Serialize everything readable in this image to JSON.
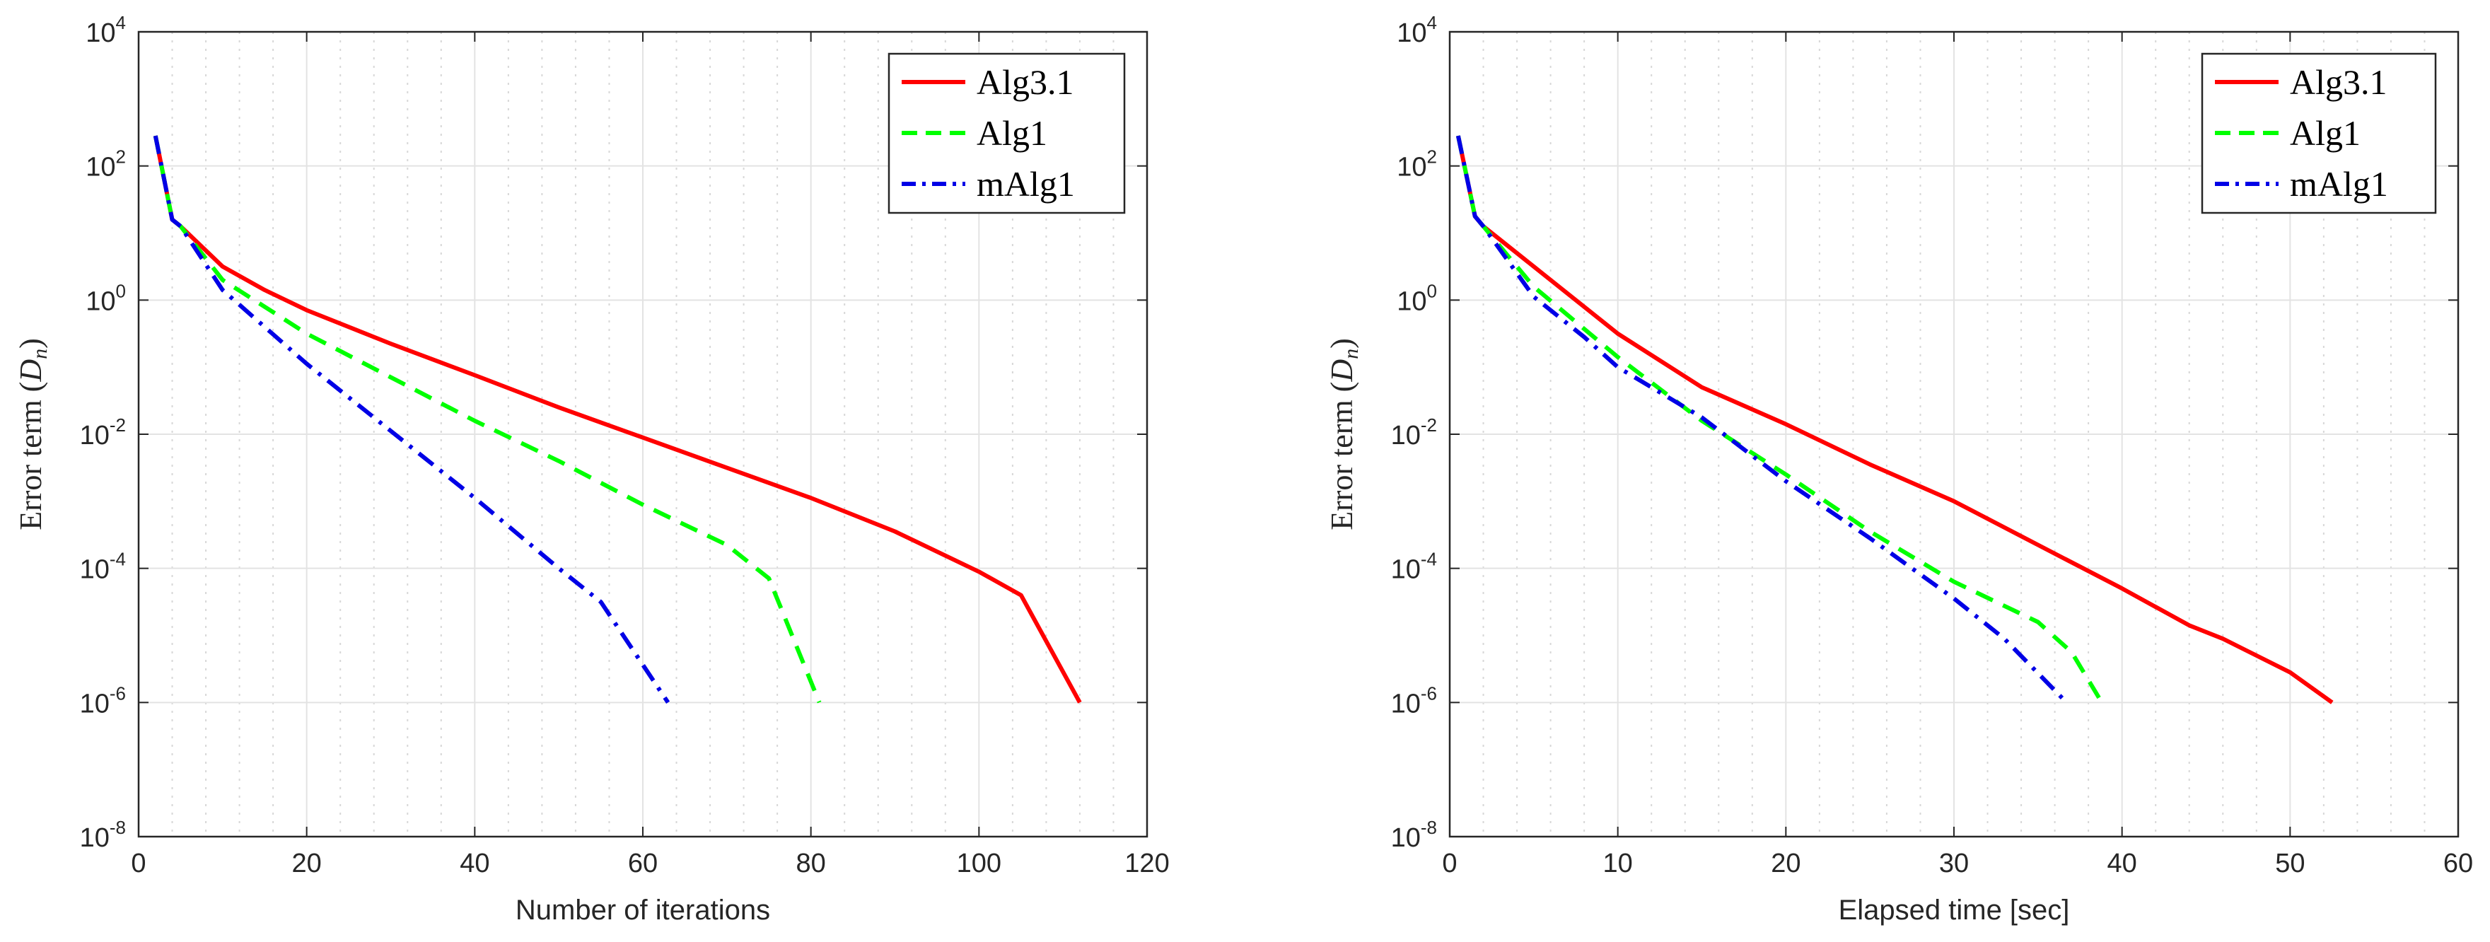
{
  "chart_data": [
    {
      "type": "line",
      "title": "",
      "xlabel": "Number of iterations",
      "ylabel": "Error term",
      "ylabel_symbol": "D",
      "ylabel_subscript": "n",
      "yscale": "log",
      "xlim": [
        0,
        120
      ],
      "ylim_exponent": [
        -8,
        4
      ],
      "x_ticks": [
        "0",
        "20",
        "40",
        "60",
        "80",
        "100",
        "120"
      ],
      "y_tick_base": "10",
      "y_tick_exponents": [
        "-8",
        "-6",
        "-4",
        "-2",
        "0",
        "2",
        "4"
      ],
      "grid": true,
      "legend_position": "top-right",
      "series": [
        {
          "name": "Alg3.1",
          "color": "#ff0000",
          "dash": "solid",
          "points": [
            [
              2,
              2.45
            ],
            [
              4,
              1.2
            ],
            [
              5,
              1.1
            ],
            [
              10,
              0.5
            ],
            [
              15,
              0.15
            ],
            [
              20,
              -0.15
            ],
            [
              30,
              -0.65
            ],
            [
              40,
              -1.12
            ],
            [
              50,
              -1.6
            ],
            [
              60,
              -2.05
            ],
            [
              70,
              -2.5
            ],
            [
              80,
              -2.95
            ],
            [
              90,
              -3.45
            ],
            [
              100,
              -4.05
            ],
            [
              105,
              -4.4
            ],
            [
              112,
              -6
            ]
          ]
        },
        {
          "name": "Alg1",
          "color": "#00ff00",
          "dash": "dashed",
          "points": [
            [
              2,
              2.45
            ],
            [
              4,
              1.2
            ],
            [
              5,
              1.1
            ],
            [
              10,
              0.3
            ],
            [
              15,
              -0.1
            ],
            [
              20,
              -0.5
            ],
            [
              30,
              -1.15
            ],
            [
              40,
              -1.8
            ],
            [
              50,
              -2.4
            ],
            [
              60,
              -3.05
            ],
            [
              70,
              -3.65
            ],
            [
              75,
              -4.15
            ],
            [
              81,
              -6
            ]
          ]
        },
        {
          "name": "mAlg1",
          "color": "#0000e6",
          "dash": "dashdot",
          "points": [
            [
              2,
              2.45
            ],
            [
              4,
              1.2
            ],
            [
              5,
              1.1
            ],
            [
              10,
              0.15
            ],
            [
              15,
              -0.4
            ],
            [
              20,
              -0.95
            ],
            [
              30,
              -1.95
            ],
            [
              40,
              -2.95
            ],
            [
              50,
              -4.0
            ],
            [
              55,
              -4.5
            ],
            [
              63,
              -6
            ]
          ]
        }
      ]
    },
    {
      "type": "line",
      "title": "",
      "xlabel": "Elapsed time [sec]",
      "ylabel": "Error term",
      "ylabel_symbol": "D",
      "ylabel_subscript": "n",
      "yscale": "log",
      "xlim": [
        0,
        60
      ],
      "ylim_exponent": [
        -8,
        4
      ],
      "x_ticks": [
        "0",
        "10",
        "20",
        "30",
        "40",
        "50",
        "60"
      ],
      "y_tick_base": "10",
      "y_tick_exponents": [
        "-8",
        "-6",
        "-4",
        "-2",
        "0",
        "2",
        "4"
      ],
      "grid": true,
      "legend_position": "top-right",
      "series": [
        {
          "name": "Alg3.1",
          "color": "#ff0000",
          "dash": "solid",
          "points": [
            [
              0.5,
              2.45
            ],
            [
              1.5,
              1.25
            ],
            [
              2,
              1.1
            ],
            [
              5,
              0.5
            ],
            [
              10,
              -0.5
            ],
            [
              15,
              -1.3
            ],
            [
              20,
              -1.85
            ],
            [
              25,
              -2.45
            ],
            [
              30,
              -3.0
            ],
            [
              35,
              -3.65
            ],
            [
              40,
              -4.3
            ],
            [
              44,
              -4.85
            ],
            [
              46,
              -5.05
            ],
            [
              50,
              -5.55
            ],
            [
              52.5,
              -6
            ]
          ]
        },
        {
          "name": "Alg1",
          "color": "#00ff00",
          "dash": "dashed",
          "points": [
            [
              0.5,
              2.45
            ],
            [
              1.5,
              1.25
            ],
            [
              2,
              1.1
            ],
            [
              5,
              0.2
            ],
            [
              10,
              -0.85
            ],
            [
              15,
              -1.8
            ],
            [
              20,
              -2.6
            ],
            [
              25,
              -3.45
            ],
            [
              30,
              -4.2
            ],
            [
              35,
              -4.8
            ],
            [
              37,
              -5.25
            ],
            [
              38.8,
              -6
            ]
          ]
        },
        {
          "name": "mAlg1",
          "color": "#0000e6",
          "dash": "dashdot",
          "points": [
            [
              0.5,
              2.45
            ],
            [
              1.5,
              1.25
            ],
            [
              2,
              1.1
            ],
            [
              5,
              0.05
            ],
            [
              8,
              -0.55
            ],
            [
              10,
              -1.0
            ],
            [
              13,
              -1.45
            ],
            [
              15,
              -1.75
            ],
            [
              20,
              -2.7
            ],
            [
              25,
              -3.55
            ],
            [
              30,
              -4.45
            ],
            [
              33,
              -5.05
            ],
            [
              36.7,
              -6
            ]
          ]
        }
      ]
    }
  ]
}
